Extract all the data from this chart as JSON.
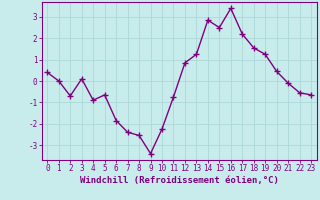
{
  "x": [
    0,
    1,
    2,
    3,
    4,
    5,
    6,
    7,
    8,
    9,
    10,
    11,
    12,
    13,
    14,
    15,
    16,
    17,
    18,
    19,
    20,
    21,
    22,
    23
  ],
  "y": [
    0.4,
    0.0,
    -0.7,
    0.1,
    -0.9,
    -0.65,
    -1.85,
    -2.4,
    -2.55,
    -3.4,
    -2.25,
    -0.75,
    0.85,
    1.25,
    2.85,
    2.5,
    3.4,
    2.2,
    1.55,
    1.25,
    0.45,
    -0.1,
    -0.55,
    -0.65
  ],
  "line_color": "#800080",
  "marker": "+",
  "marker_size": 4,
  "marker_edge_width": 1.0,
  "bg_color": "#c8ecec",
  "grid_color": "#add8d8",
  "xlabel": "Windchill (Refroidissement éolien,°C)",
  "xlabel_color": "#800080",
  "xlim": [
    -0.5,
    23.5
  ],
  "ylim": [
    -3.7,
    3.7
  ],
  "yticks": [
    -3,
    -2,
    -1,
    0,
    1,
    2,
    3
  ],
  "xticks": [
    0,
    1,
    2,
    3,
    4,
    5,
    6,
    7,
    8,
    9,
    10,
    11,
    12,
    13,
    14,
    15,
    16,
    17,
    18,
    19,
    20,
    21,
    22,
    23
  ],
  "tick_color": "#800080",
  "spine_color": "#800080",
  "line_width": 1.0,
  "tick_fontsize": 5.5,
  "xlabel_fontsize": 6.5
}
